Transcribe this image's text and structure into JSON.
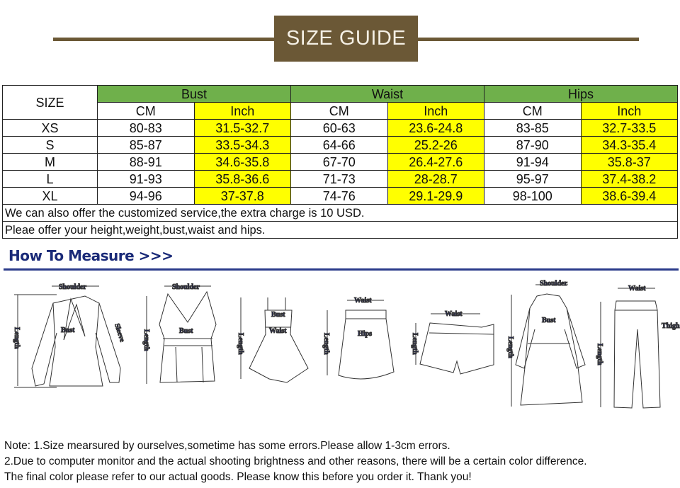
{
  "banner": {
    "title": "SIZE GUIDE",
    "color": "#6b5836"
  },
  "table": {
    "size_header": "SIZE",
    "groups": [
      "Bust",
      "Waist",
      "Hips"
    ],
    "units": [
      "CM",
      "Inch",
      "CM",
      "Inch",
      "CM",
      "Inch"
    ],
    "rows": [
      [
        "XS",
        "80-83",
        "31.5-32.7",
        "60-63",
        "23.6-24.8",
        "83-85",
        "32.7-33.5"
      ],
      [
        "S",
        "85-87",
        "33.5-34.3",
        "64-66",
        "25.2-26",
        "87-90",
        "34.3-35.4"
      ],
      [
        "M",
        "88-91",
        "34.6-35.8",
        "67-70",
        "26.4-27.6",
        "91-94",
        "35.8-37"
      ],
      [
        "L",
        "91-93",
        "35.8-36.6",
        "71-73",
        "28-28.7",
        "95-97",
        "37.4-38.2"
      ],
      [
        "XL",
        "94-96",
        "37-37.8",
        "74-76",
        "29.1-29.9",
        "98-100",
        "38.6-39.4"
      ]
    ],
    "note1": "We can also offer the customized service,the extra charge is 10 USD.",
    "note2": "Pleae offer your height,weight,bust,waist and hips.",
    "header_color": "#6fb04b",
    "inch_color": "#ffff00"
  },
  "measure": {
    "title": "How To Measure >>>",
    "labels": {
      "shoulder": "Shoulder",
      "bust": "Bust",
      "length": "Length",
      "sleeve": "Sleeve",
      "waist": "Waist",
      "hips": "Hips",
      "thigh": "Thigh"
    }
  },
  "notes": [
    "Note: 1.Size mearsured by ourselves,sometime has some errors.Please allow 1-3cm errors.",
    "2.Due to computer monitor and the actual shooting brightness and other reasons, there will be a certain color difference.",
    "The final color please refer to our actual goods. Please know this before you order it. Thank you!"
  ]
}
